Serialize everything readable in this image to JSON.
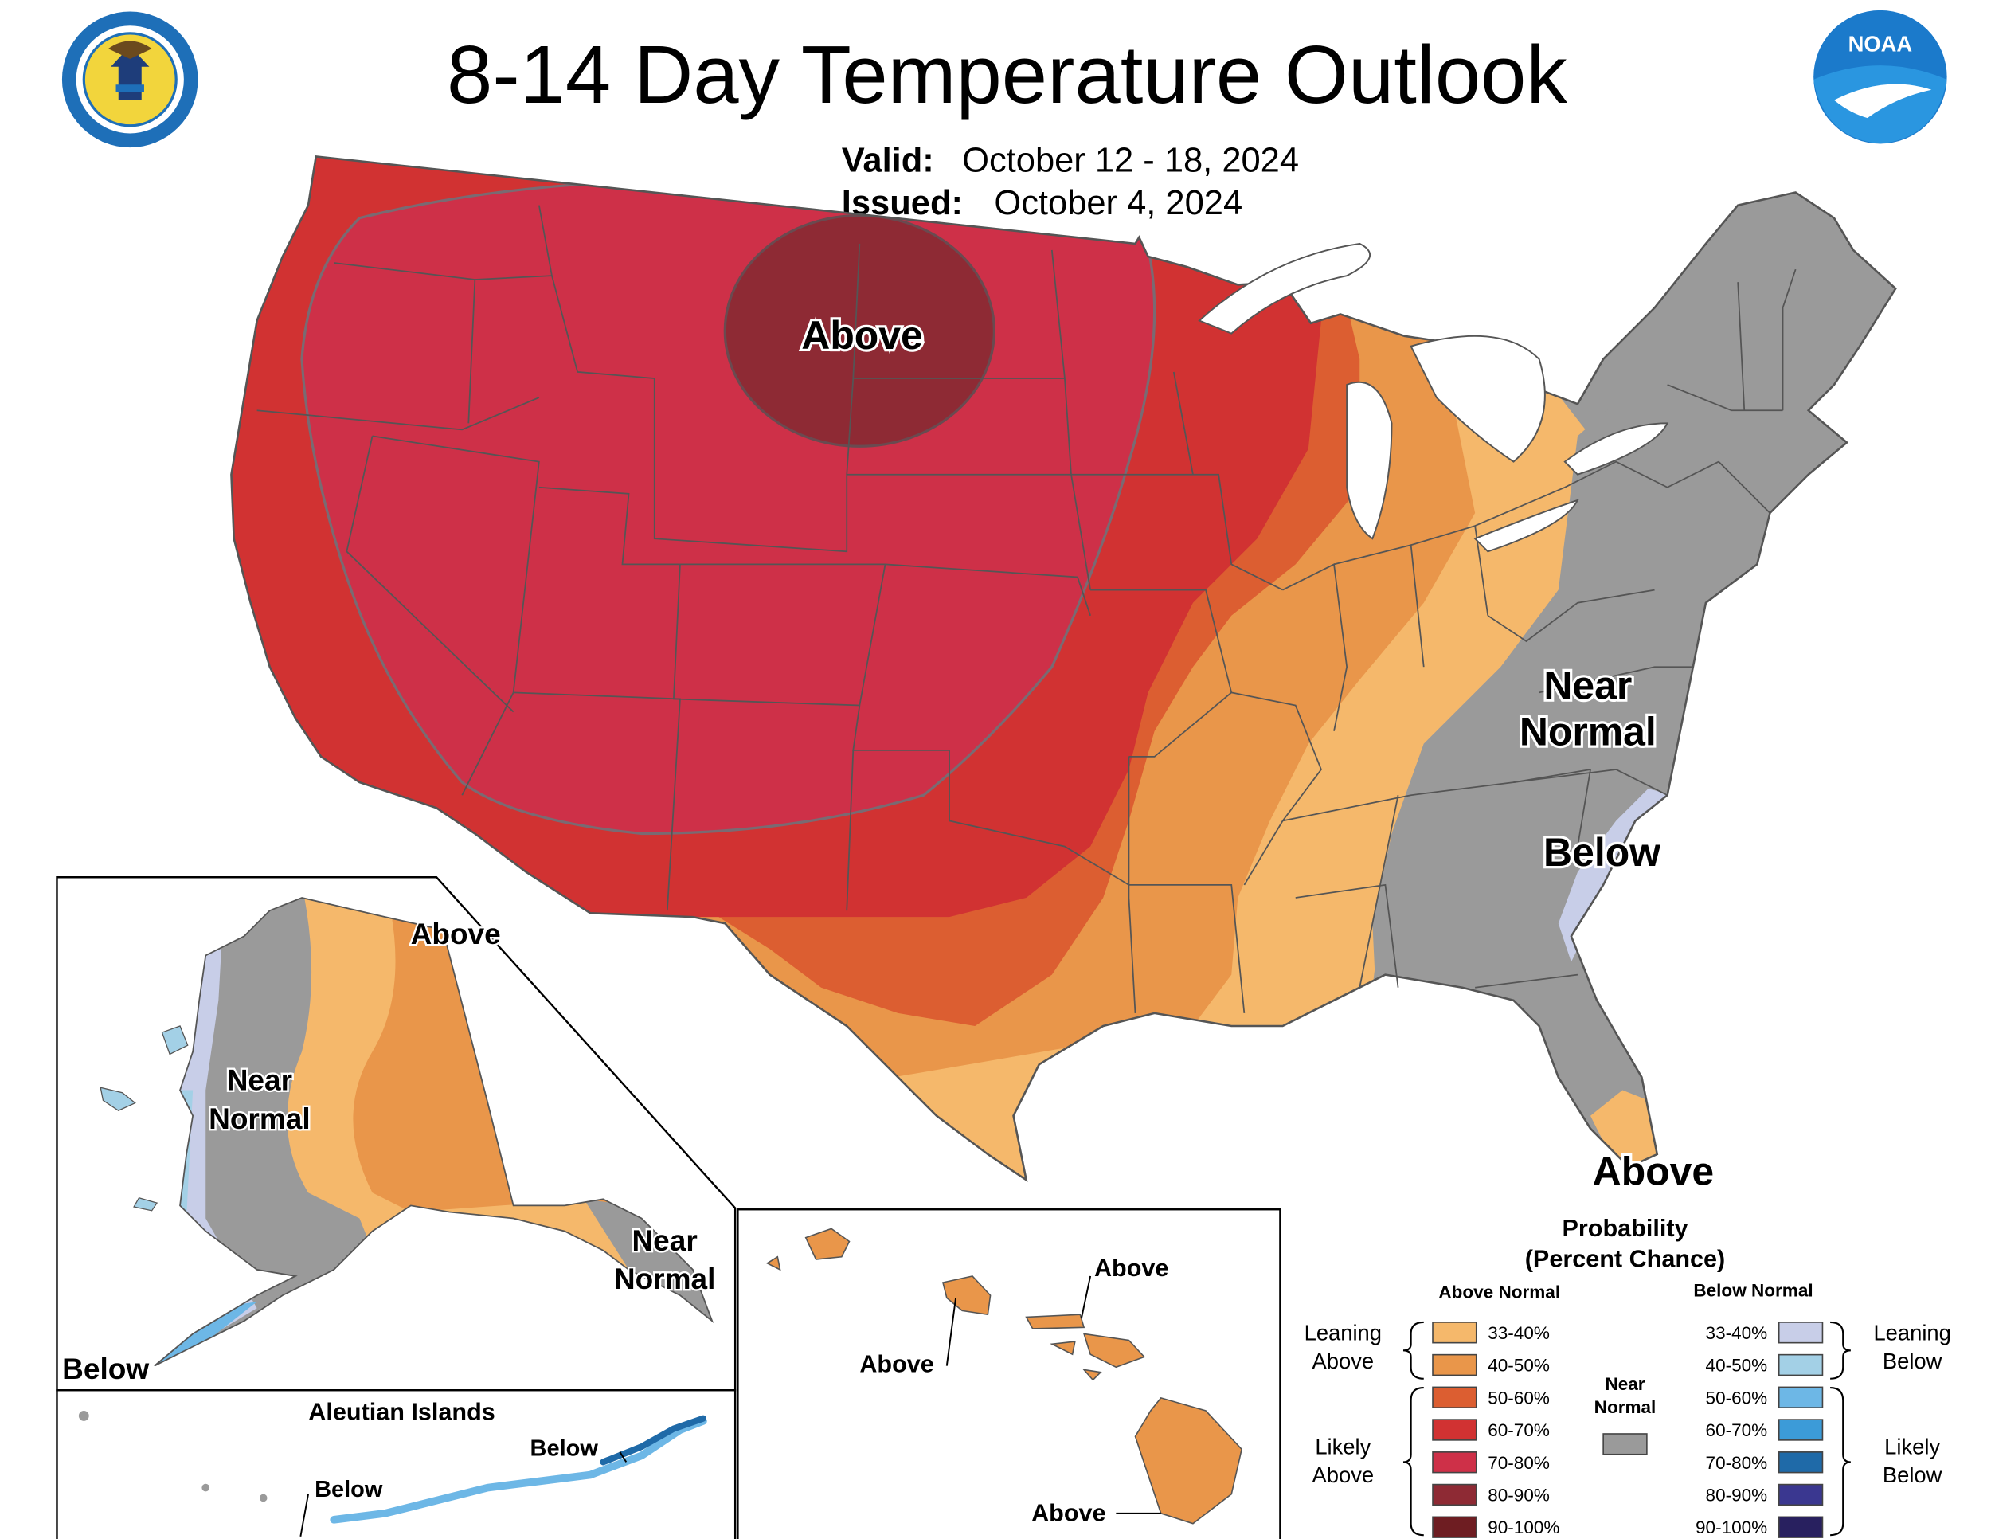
{
  "title": "8-14 Day Temperature Outlook",
  "valid_label": "Valid:",
  "valid_value": "October 12 - 18, 2024",
  "issued_label": "Issued:",
  "issued_value": "October 4, 2024",
  "logos": {
    "commerce_text": "DEPARTMENT OF COMMERCE · UNITED STATES OF AMERICA",
    "noaa_text": "NOAA"
  },
  "conus_labels": {
    "above_north": "Above",
    "near_normal_1": "Near",
    "near_normal_2": "Normal",
    "below": "Below",
    "above_florida": "Above"
  },
  "alaska_labels": {
    "above": "Above",
    "near_normal_1": "Near",
    "near_normal_2": "Normal",
    "se_near_1": "Near",
    "se_near_2": "Normal",
    "below": "Below"
  },
  "aleutian": {
    "title": "Aleutian Islands",
    "below_1": "Below",
    "below_2": "Below"
  },
  "hawaii_labels": {
    "above_1": "Above",
    "above_2": "Above",
    "above_3": "Above"
  },
  "legend": {
    "title_1": "Probability",
    "title_2": "(Percent Chance)",
    "above_header": "Above Normal",
    "below_header": "Below Normal",
    "near_1": "Near",
    "near_2": "Normal",
    "leaning_above_1": "Leaning",
    "leaning_above_2": "Above",
    "likely_above_1": "Likely",
    "likely_above_2": "Above",
    "leaning_below_1": "Leaning",
    "leaning_below_2": "Below",
    "likely_below_1": "Likely",
    "likely_below_2": "Below",
    "above_bins": [
      {
        "label": "33-40%",
        "color": "#F5B86B"
      },
      {
        "label": "40-50%",
        "color": "#E9964A"
      },
      {
        "label": "50-60%",
        "color": "#DC5E31"
      },
      {
        "label": "60-70%",
        "color": "#D13232"
      },
      {
        "label": "70-80%",
        "color": "#CE3048"
      },
      {
        "label": "80-90%",
        "color": "#8E2A34"
      },
      {
        "label": "90-100%",
        "color": "#6E1D22"
      }
    ],
    "below_bins": [
      {
        "label": "33-40%",
        "color": "#C8CEE8"
      },
      {
        "label": "40-50%",
        "color": "#A3D0E6"
      },
      {
        "label": "50-60%",
        "color": "#6DB7E6"
      },
      {
        "label": "60-70%",
        "color": "#3C9BD8"
      },
      {
        "label": "70-80%",
        "color": "#1F6AA8"
      },
      {
        "label": "80-90%",
        "color": "#3A3790"
      },
      {
        "label": "90-100%",
        "color": "#28205F"
      }
    ],
    "near_color": "#9A9A9A"
  },
  "colors": {
    "land_white": "#FFFFFF",
    "border": "#555555"
  }
}
